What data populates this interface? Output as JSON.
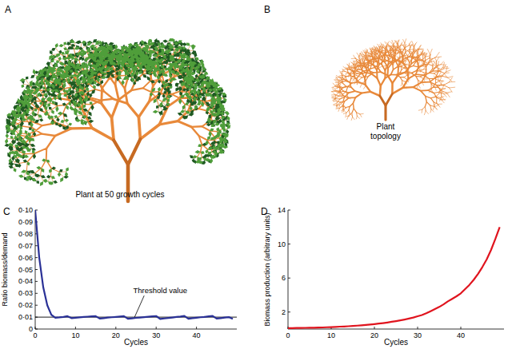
{
  "figure": {
    "panels": [
      {
        "letter": "A",
        "caption": "Plant at 50 growth cycles"
      },
      {
        "letter": "B",
        "caption": "Plant topology"
      }
    ]
  },
  "chart_data": [
    {
      "type": "line",
      "title": "C",
      "xlabel": "Cycles",
      "ylabel": "Ratio biomass/demand",
      "x": [
        0,
        1,
        2,
        3,
        4,
        5,
        6,
        7,
        8,
        9,
        10,
        11,
        12,
        13,
        14,
        15,
        16,
        17,
        18,
        19,
        20,
        21,
        22,
        23,
        24,
        25,
        26,
        27,
        28,
        29,
        30,
        31,
        32,
        33,
        34,
        35,
        36,
        37,
        38,
        39,
        40,
        41,
        42,
        43,
        44,
        45,
        46,
        47,
        48,
        49
      ],
      "values": [
        0.1,
        0.06,
        0.035,
        0.02,
        0.012,
        0.0095,
        0.0098,
        0.0102,
        0.0108,
        0.0092,
        0.0095,
        0.0098,
        0.0101,
        0.0104,
        0.0106,
        0.0108,
        0.0088,
        0.0092,
        0.0096,
        0.0099,
        0.0102,
        0.0105,
        0.0108,
        0.0086,
        0.009,
        0.0094,
        0.0097,
        0.01,
        0.0103,
        0.0106,
        0.0109,
        0.0085,
        0.0089,
        0.0093,
        0.0097,
        0.0101,
        0.0105,
        0.011,
        0.0087,
        0.0091,
        0.0095,
        0.0099,
        0.0102,
        0.0106,
        0.011,
        0.0088,
        0.0092,
        0.0096,
        0.01,
        0.0085
      ],
      "color": "#2a3196",
      "threshold": {
        "value": 0.01,
        "label": "Threshold value",
        "color": "#000000"
      },
      "xlim": [
        0,
        50
      ],
      "xticks": [
        0,
        10,
        20,
        30,
        40
      ],
      "ylim": [
        0,
        0.1
      ],
      "yticks": [
        0,
        {
          "value": 0.01,
          "label": "0·01"
        },
        {
          "value": 0.02,
          "label": "0·02"
        },
        {
          "value": 0.03,
          "label": "0·03"
        },
        {
          "value": 0.04,
          "label": "0·04"
        },
        {
          "value": 0.05,
          "label": "0·05"
        },
        {
          "value": 0.06,
          "label": "0·06"
        },
        {
          "value": 0.07,
          "label": "0·07"
        },
        {
          "value": 0.08,
          "label": "0·08"
        },
        {
          "value": 0.09,
          "label": "0·09"
        },
        {
          "value": 0.1,
          "label": "0·10"
        }
      ],
      "grid": false
    },
    {
      "type": "line",
      "title": "D",
      "xlabel": "Cycles",
      "ylabel": "Biomass production (arbitrary units)",
      "x": [
        0,
        1,
        2,
        3,
        4,
        5,
        6,
        7,
        8,
        9,
        10,
        11,
        12,
        13,
        14,
        15,
        16,
        17,
        18,
        19,
        20,
        21,
        22,
        23,
        24,
        25,
        26,
        27,
        28,
        29,
        30,
        31,
        32,
        33,
        34,
        35,
        36,
        37,
        38,
        39,
        40,
        41,
        42,
        43,
        44,
        45,
        46,
        47,
        48,
        49
      ],
      "values": [
        0.1,
        0.11,
        0.12,
        0.13,
        0.14,
        0.15,
        0.16,
        0.18,
        0.19,
        0.21,
        0.23,
        0.25,
        0.28,
        0.3,
        0.33,
        0.36,
        0.4,
        0.44,
        0.48,
        0.53,
        0.58,
        0.64,
        0.7,
        0.77,
        0.85,
        0.93,
        1.02,
        1.12,
        1.23,
        1.35,
        1.5,
        1.65,
        1.85,
        2.1,
        2.35,
        2.6,
        2.9,
        3.25,
        3.55,
        3.85,
        4.2,
        4.7,
        5.2,
        5.8,
        6.5,
        7.3,
        8.2,
        9.3,
        10.6,
        12.0
      ],
      "color": "#e0141e",
      "xlim": [
        0,
        50
      ],
      "xticks": [
        0,
        10,
        20,
        30,
        40
      ],
      "ylim": [
        0,
        14
      ],
      "yticks": [
        2,
        6,
        10,
        14
      ],
      "grid": false
    }
  ]
}
